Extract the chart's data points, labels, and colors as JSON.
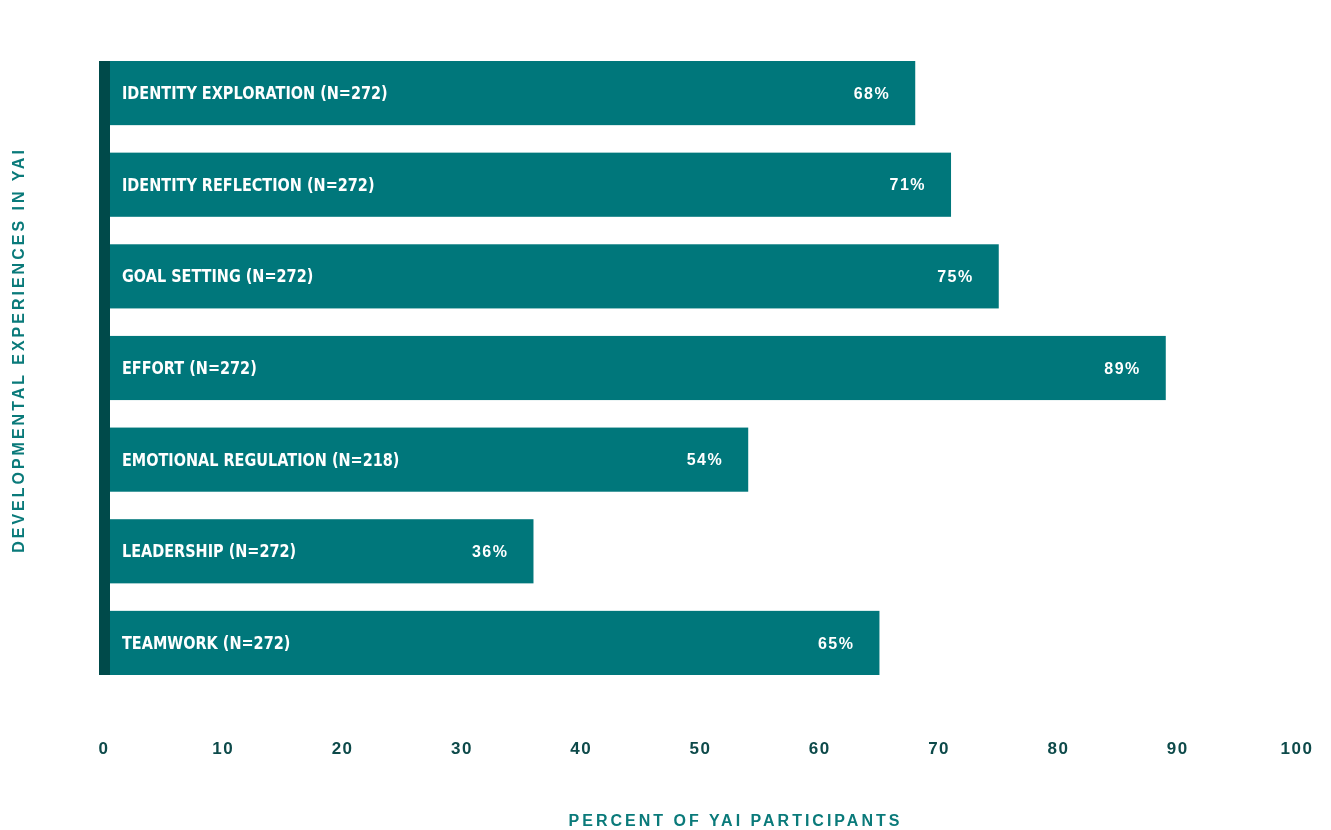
{
  "chart_data": {
    "type": "bar",
    "orientation": "horizontal",
    "xlabel": "PERCENT OF YAI PARTICIPANTS",
    "ylabel": "DEVELOPMENTAL EXPERIENCES IN YAI",
    "categories": [
      "IDENTITY EXPLORATION (N=272)",
      "IDENTITY REFLECTION (N=272)",
      "GOAL SETTING (N=272)",
      "EFFORT (N=272)",
      "EMOTIONAL REGULATION (N=218)",
      "LEADERSHIP (N=272)",
      "TEAMWORK (N=272)"
    ],
    "values": [
      68,
      71,
      75,
      89,
      54,
      36,
      65
    ],
    "value_labels": [
      "68%",
      "71%",
      "75%",
      "89%",
      "54%",
      "36%",
      "65%"
    ],
    "color": "#00777b",
    "xlim": [
      0,
      100
    ],
    "xticks": [
      0,
      10,
      20,
      30,
      40,
      50,
      60,
      70,
      80,
      90,
      100
    ],
    "grid": false
  }
}
